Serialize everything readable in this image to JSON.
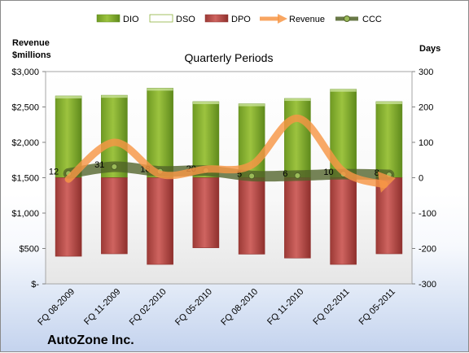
{
  "chart_data": {
    "type": "bar",
    "title": "Quarterly Periods",
    "company": "AutoZone Inc.",
    "left_axis_title": [
      "Revenue",
      "$millions"
    ],
    "right_axis_title": "Days",
    "left_ticks": [
      "$-",
      "$500",
      "$1,000",
      "$1,500",
      "$2,000",
      "$2,500",
      "$3,000"
    ],
    "left_ylim": [
      0,
      3000
    ],
    "right_ticks": [
      "-300",
      "-200",
      "-100",
      "0",
      "100",
      "200",
      "300"
    ],
    "right_ylim": [
      -300,
      300
    ],
    "categories": [
      "FQ 08-2009",
      "FQ 11-2009",
      "FQ 02-2010",
      "FQ 05-2010",
      "FQ 08-2010",
      "FQ 11-2010",
      "FQ 02-2011",
      "FQ 05-2011"
    ],
    "legend": [
      "DIO",
      "DSO",
      "DPO",
      "Revenue",
      "CCC"
    ],
    "legend_placement": "top",
    "grid": false,
    "series": [
      {
        "name": "DIO",
        "axis": "right",
        "color": "#8db13c",
        "values": [
          231,
          233,
          253,
          215,
          209,
          224,
          250,
          215
        ]
      },
      {
        "name": "DSO",
        "axis": "right",
        "color": "#ffffff",
        "values": [
          0,
          0,
          0,
          0,
          0,
          0,
          0,
          0
        ]
      },
      {
        "name": "DPO",
        "axis": "right",
        "color": "#c0504d",
        "values": [
          -222,
          -215,
          -245,
          -198,
          -216,
          -227,
          -245,
          -215
        ]
      },
      {
        "name": "Revenue",
        "axis": "left",
        "color": "#f79646",
        "values": [
          1480,
          2000,
          1550,
          1620,
          1680,
          2340,
          1590,
          1450
        ]
      },
      {
        "name": "CCC",
        "axis": "right",
        "color": "#4f6228",
        "values": [
          12,
          31,
          18,
          20,
          5,
          6,
          10,
          8
        ],
        "labels": [
          "12",
          "31",
          "18",
          "20",
          "5",
          "6",
          "10",
          "8"
        ]
      }
    ]
  }
}
